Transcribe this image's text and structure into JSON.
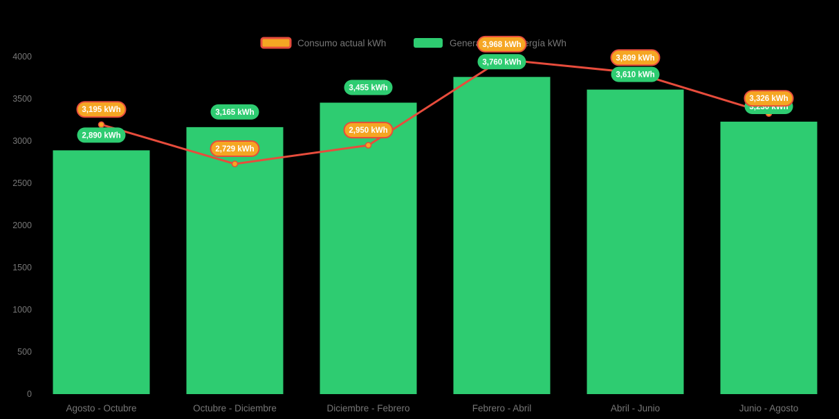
{
  "chart_data": {
    "type": "bar",
    "title": "",
    "categories": [
      "Agosto - Octubre",
      "Octubre - Diciembre",
      "Diciembre - Febrero",
      "Febrero - Abril",
      "Abril - Junio",
      "Junio - Agosto"
    ],
    "series": [
      {
        "name": "Consumo actual kWh",
        "type": "line",
        "values": [
          3195,
          2729,
          2950,
          3968,
          3809,
          3326
        ],
        "labels": [
          "3,195 kWh",
          "2,729 kWh",
          "2,950 kWh",
          "3,968 kWh",
          "3,809 kWh",
          "3,326 kWh"
        ],
        "line_color": "#e74c3c",
        "point_color": "#f5a623",
        "label_bg": "#f5a623",
        "label_border": "#e74c3c",
        "label_text_color": "#ffffff"
      },
      {
        "name": "Generación de energía kWh",
        "type": "bar",
        "values": [
          2890,
          3165,
          3455,
          3760,
          3610,
          3230
        ],
        "labels": [
          "2,890 kWh",
          "3,165 kWh",
          "3,455 kWh",
          "3,760 kWh",
          "3,610 kWh",
          "3,230 kWh"
        ],
        "bar_color": "#2ecc71",
        "label_bg": "#2ecc71",
        "label_border": "none",
        "label_text_color": "#ffffff"
      }
    ],
    "ylim": [
      0,
      4000
    ],
    "yticks": [
      0,
      500,
      1000,
      1500,
      2000,
      2500,
      3000,
      3500,
      4000
    ],
    "ytick_labels": [
      "0",
      "500",
      "1000",
      "1500",
      "2000",
      "2500",
      "3000",
      "3500",
      "4000"
    ],
    "grid": false,
    "legend_position": "top",
    "axis_text_color": "#777777",
    "background": "#000000"
  }
}
